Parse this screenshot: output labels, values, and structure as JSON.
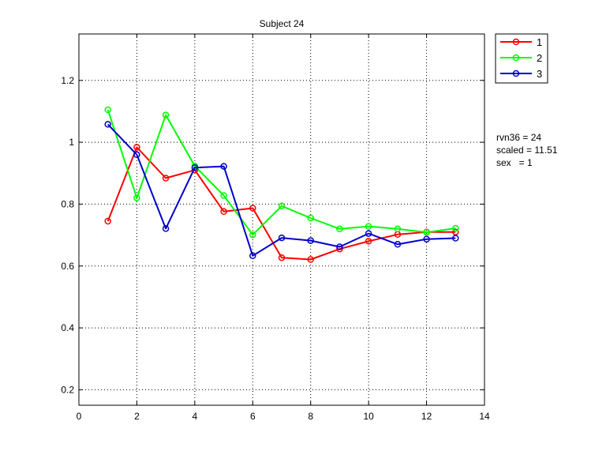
{
  "chart_data": {
    "type": "line",
    "title": "Subject 24",
    "xlabel": "",
    "ylabel": "",
    "xlim": [
      0,
      14
    ],
    "ylim": [
      0.15,
      1.35
    ],
    "xticks": [
      0,
      2,
      4,
      6,
      8,
      10,
      12,
      14
    ],
    "yticks": [
      0.2,
      0.4,
      0.6,
      0.8,
      1,
      1.2
    ],
    "xtick_labels": [
      "0",
      "2",
      "4",
      "6",
      "8",
      "10",
      "12",
      "14"
    ],
    "ytick_labels": [
      "0.2",
      "0.4",
      "0.6",
      "0.8",
      "1",
      "1.2"
    ],
    "grid": true,
    "legend_position": "outside-top-right",
    "x": [
      1,
      2,
      3,
      4,
      5,
      6,
      7,
      8,
      9,
      10,
      11,
      12,
      13
    ],
    "series": [
      {
        "name": "1",
        "color": "#ff0000",
        "marker": "circle",
        "values": [
          0.745,
          0.984,
          0.884,
          0.91,
          0.776,
          0.787,
          0.627,
          0.621,
          0.655,
          0.68,
          0.702,
          0.71,
          0.71
        ]
      },
      {
        "name": "2",
        "color": "#00ff00",
        "marker": "circle",
        "values": [
          1.105,
          0.82,
          1.088,
          0.923,
          0.828,
          0.701,
          0.794,
          0.755,
          0.72,
          0.728,
          0.72,
          0.709,
          0.722
        ]
      },
      {
        "name": "3",
        "color": "#0000cc",
        "marker": "circle",
        "values": [
          1.058,
          0.96,
          0.721,
          0.918,
          0.922,
          0.633,
          0.691,
          0.682,
          0.662,
          0.705,
          0.67,
          0.687,
          0.69
        ]
      }
    ],
    "annotations": [
      "rvn36 = 24",
      "scaled = 11.51",
      "sex   = 1"
    ]
  }
}
